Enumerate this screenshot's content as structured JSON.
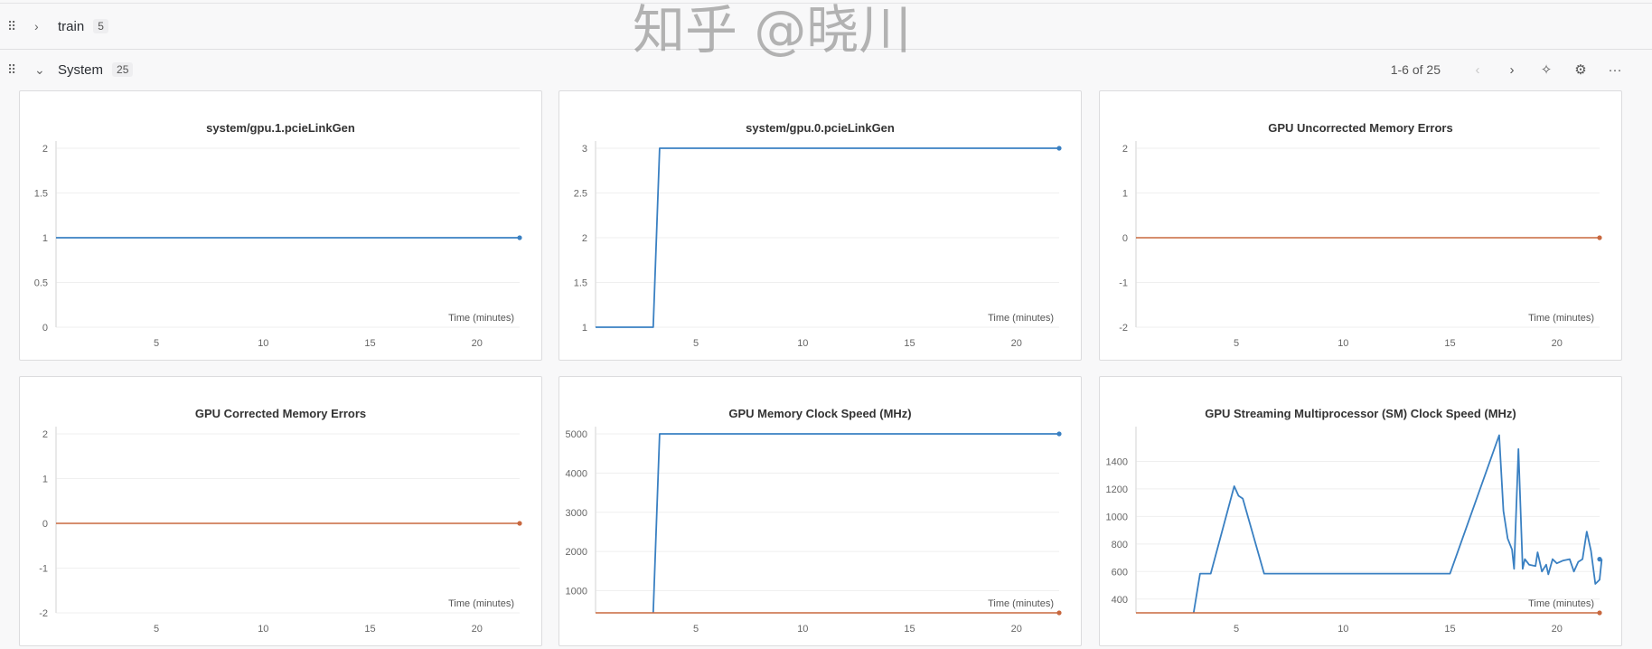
{
  "sections": [
    {
      "title": "train",
      "count": "5",
      "expanded": false
    },
    {
      "title": "System",
      "count": "25",
      "expanded": true
    }
  ],
  "toolbar": {
    "pager": "1-6 of 25",
    "icons": [
      "chevron-left-icon",
      "chevron-right-icon",
      "pin-icon",
      "gear-icon",
      "more-icon"
    ]
  },
  "colors": {
    "blue": "#3a80c2",
    "orange": "#c8683f"
  },
  "watermark": "知乎 @晓川",
  "chart_data": [
    {
      "type": "line",
      "title": "system/gpu.1.pcieLinkGen",
      "xlabel": "Time (minutes)",
      "xlim": [
        0.3,
        22
      ],
      "xticks": [
        5,
        10,
        15,
        20
      ],
      "ylim": [
        0,
        2
      ],
      "yticks": [
        "0",
        "0.5",
        "1",
        "1.5",
        "2"
      ],
      "grid": true,
      "series": [
        {
          "color": "#3a80c2",
          "points": [
            [
              0.3,
              1
            ],
            [
              22,
              1
            ]
          ]
        }
      ]
    },
    {
      "type": "line",
      "title": "system/gpu.0.pcieLinkGen",
      "xlabel": "Time (minutes)",
      "xlim": [
        0.3,
        22
      ],
      "xticks": [
        5,
        10,
        15,
        20
      ],
      "ylim": [
        1,
        3
      ],
      "yticks": [
        "1",
        "1.5",
        "2",
        "2.5",
        "3"
      ],
      "grid": true,
      "series": [
        {
          "color": "#3a80c2",
          "points": [
            [
              0.3,
              1
            ],
            [
              3.0,
              1
            ],
            [
              3.3,
              3
            ],
            [
              22,
              3
            ]
          ]
        }
      ]
    },
    {
      "type": "line",
      "title": "GPU Uncorrected Memory Errors",
      "xlabel": "Time (minutes)",
      "xlim": [
        0.3,
        22
      ],
      "xticks": [
        5,
        10,
        15,
        20
      ],
      "ylim": [
        -2,
        2
      ],
      "yticks": [
        "-2",
        "-1",
        "0",
        "1",
        "2"
      ],
      "grid": true,
      "series": [
        {
          "color": "#c8683f",
          "points": [
            [
              0.3,
              0
            ],
            [
              22,
              0
            ]
          ]
        }
      ]
    },
    {
      "type": "line",
      "title": "GPU Corrected Memory Errors",
      "xlabel": "Time (minutes)",
      "xlim": [
        0.3,
        22
      ],
      "xticks": [
        5,
        10,
        15,
        20
      ],
      "ylim": [
        -2,
        2
      ],
      "yticks": [
        "-2",
        "-1",
        "0",
        "1",
        "2"
      ],
      "grid": true,
      "series": [
        {
          "color": "#c8683f",
          "points": [
            [
              0.3,
              0
            ],
            [
              22,
              0
            ]
          ]
        }
      ]
    },
    {
      "type": "line",
      "title": "GPU Memory Clock Speed (MHz)",
      "xlabel": "Time (minutes)",
      "xlim": [
        0.3,
        22
      ],
      "xticks": [
        5,
        10,
        15,
        20
      ],
      "ylim": [
        436,
        5000
      ],
      "yticks": [
        "1000",
        "2000",
        "3000",
        "4000",
        "5000"
      ],
      "grid": true,
      "series": [
        {
          "color": "#3a80c2",
          "points": [
            [
              3.0,
              436
            ],
            [
              3.3,
              5000
            ],
            [
              22,
              5000
            ]
          ]
        },
        {
          "color": "#c8683f",
          "points": [
            [
              0.3,
              436
            ],
            [
              22,
              436
            ]
          ]
        }
      ]
    },
    {
      "type": "line",
      "title": "GPU Streaming Multiprocessor (SM) Clock Speed (MHz)",
      "xlabel": "Time (minutes)",
      "xlim": [
        0.3,
        22
      ],
      "xticks": [
        5,
        10,
        15,
        20
      ],
      "ylim": [
        300,
        1600
      ],
      "yticks": [
        "400",
        "600",
        "800",
        "1000",
        "1200",
        "1400"
      ],
      "grid": true,
      "series": [
        {
          "color": "#3a80c2",
          "points": [
            [
              3.0,
              300
            ],
            [
              3.3,
              585
            ],
            [
              3.8,
              585
            ],
            [
              4.9,
              1220
            ],
            [
              5.1,
              1150
            ],
            [
              5.3,
              1130
            ],
            [
              6.3,
              585
            ],
            [
              15,
              585
            ],
            [
              17.3,
              1590
            ],
            [
              17.5,
              1040
            ],
            [
              17.7,
              840
            ],
            [
              17.9,
              760
            ],
            [
              18.0,
              620
            ],
            [
              18.2,
              1490
            ],
            [
              18.4,
              620
            ],
            [
              18.5,
              690
            ],
            [
              18.7,
              650
            ],
            [
              19.0,
              640
            ],
            [
              19.1,
              740
            ],
            [
              19.3,
              600
            ],
            [
              19.5,
              650
            ],
            [
              19.6,
              580
            ],
            [
              19.8,
              690
            ],
            [
              20.0,
              660
            ],
            [
              20.3,
              680
            ],
            [
              20.6,
              690
            ],
            [
              20.8,
              600
            ],
            [
              21.0,
              670
            ],
            [
              21.2,
              690
            ],
            [
              21.4,
              890
            ],
            [
              21.6,
              750
            ],
            [
              21.8,
              510
            ],
            [
              22.0,
              540
            ],
            [
              22.1,
              690
            ]
          ]
        },
        {
          "color": "#c8683f",
          "points": [
            [
              0.3,
              300
            ],
            [
              22,
              300
            ]
          ]
        }
      ]
    }
  ]
}
